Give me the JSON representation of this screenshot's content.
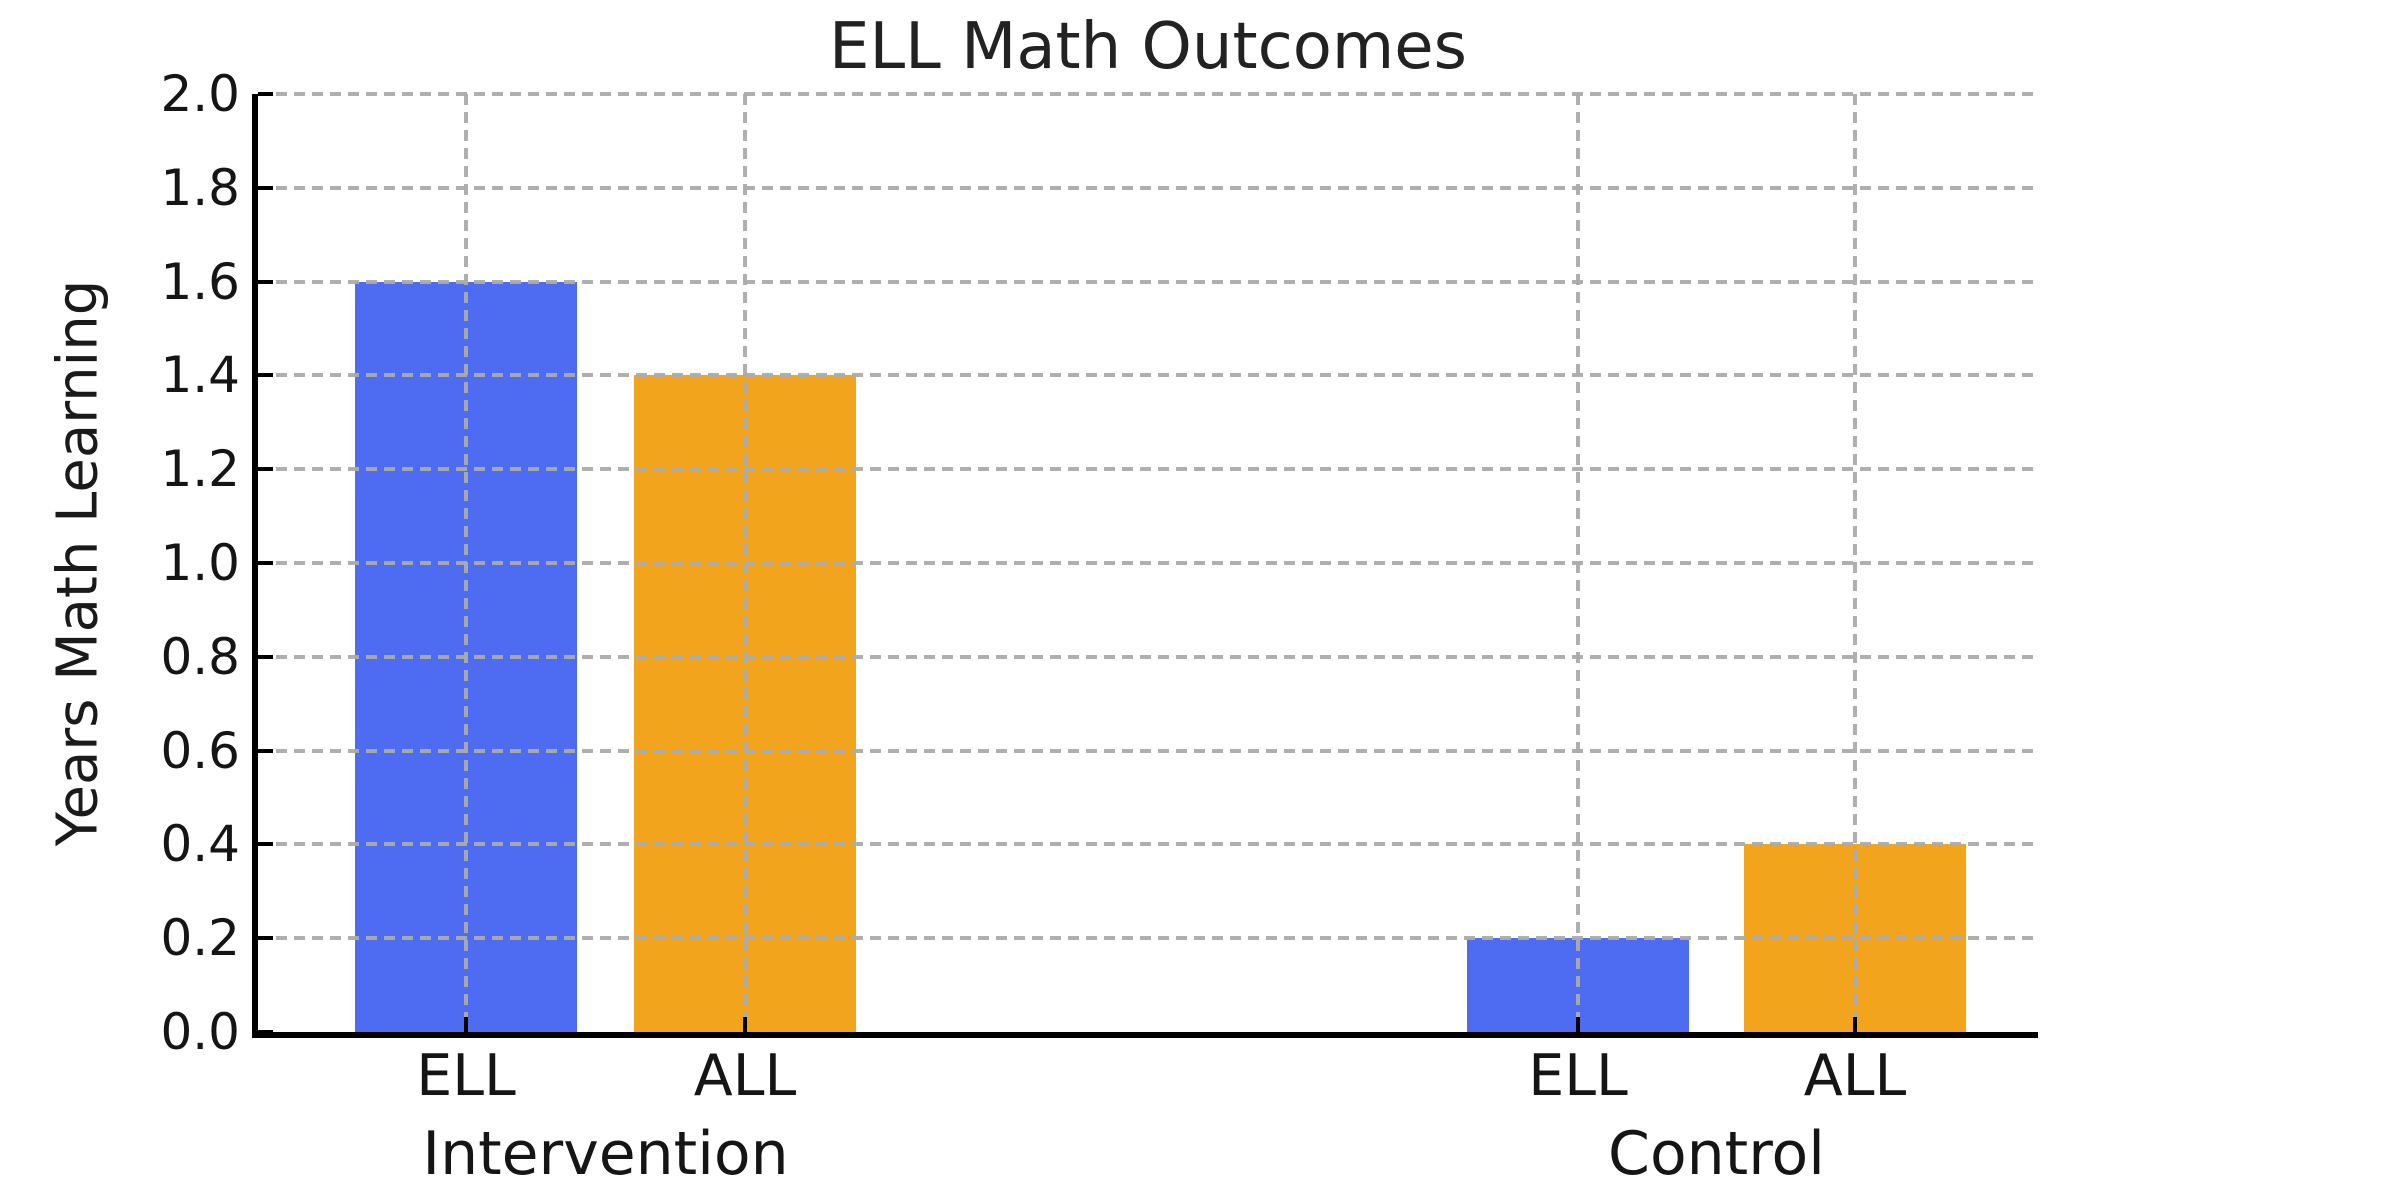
{
  "chart_data": {
    "type": "bar",
    "title": "ELL Math Outcomes",
    "ylabel": "Years Math Learning",
    "xlabel": "",
    "ylim": [
      0.0,
      2.0
    ],
    "ytick_step": 0.2,
    "ytick_labels": [
      "0.0",
      "0.2",
      "0.4",
      "0.6",
      "0.8",
      "1.0",
      "1.2",
      "1.4",
      "1.6",
      "1.8",
      "2.0"
    ],
    "categories": [
      "Intervention",
      "Control"
    ],
    "series": [
      {
        "name": "ELL",
        "color": "#4E6CF2",
        "values": [
          1.6,
          0.2
        ]
      },
      {
        "name": "ALL",
        "color": "#F2A41D",
        "values": [
          1.4,
          0.4
        ]
      }
    ],
    "bar_tick_labels": [
      "ELL",
      "ALL",
      "ELL",
      "ALL"
    ],
    "grid": {
      "visible": true,
      "style": "dashed",
      "color": "#ABABAB",
      "axes": "both",
      "above_bars": true
    },
    "legend": {
      "visible": false
    },
    "axis_color": "#000000",
    "text_color": "#151515",
    "background_color": "#FFFFFF"
  }
}
